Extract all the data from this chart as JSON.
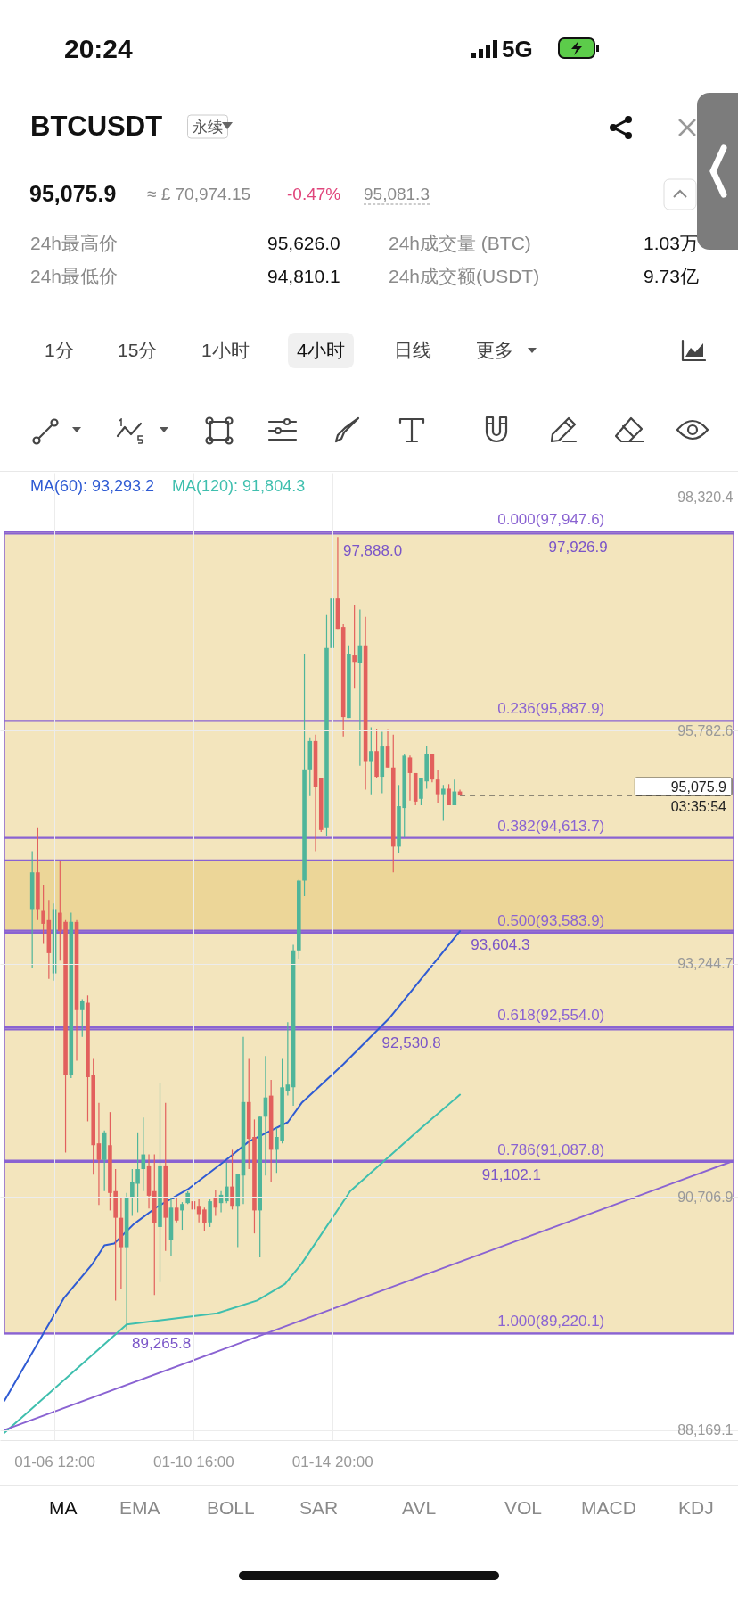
{
  "chart_data": {
    "type": "candlestick",
    "title": "BTCUSDT",
    "subtitle": "永续",
    "x": [
      "--01-05T20:00",
      "--01-06T00:00",
      "--01-06T04:00",
      "--01-06T08:00",
      "--01-06T12:00",
      "--01-06T16:00",
      "--01-06T20:00",
      "--01-07T00:00",
      "--01-07T04:00",
      "--01-07T08:00",
      "--01-07T12:00",
      "--01-07T16:00",
      "--01-07T20:00",
      "--01-08T00:00",
      "--01-08T04:00",
      "--01-08T08:00",
      "--01-08T12:00",
      "--01-08T16:00",
      "--01-08T20:00",
      "--01-09T00:00",
      "--01-09T04:00",
      "--01-09T08:00",
      "--01-09T12:00",
      "--01-09T16:00",
      "--01-09T20:00",
      "--01-10T00:00",
      "--01-10T04:00",
      "--01-10T08:00",
      "--01-10T12:00",
      "--01-10T16:00",
      "--01-10T20:00",
      "--01-11T00:00",
      "--01-11T04:00",
      "--01-11T08:00",
      "--01-11T12:00",
      "--01-11T16:00",
      "--01-11T20:00",
      "--01-12T00:00",
      "--01-12T04:00",
      "--01-12T08:00",
      "--01-12T12:00",
      "--01-12T16:00",
      "--01-12T20:00",
      "--01-13T00:00",
      "--01-13T04:00",
      "--01-13T08:00",
      "--01-13T12:00",
      "--01-13T16:00",
      "--01-13T20:00",
      "--01-14T00:00",
      "--01-14T04:00",
      "--01-14T08:00",
      "--01-14T12:00",
      "--01-14T16:00",
      "--01-14T20:00",
      "--01-15T00:00",
      "--01-15T04:00",
      "--01-15T08:00",
      "--01-15T12:00",
      "--01-15T16:00",
      "--01-15T20:00",
      "--01-16T00:00",
      "--01-16T04:00",
      "--01-16T08:00",
      "--01-16T12:00",
      "--01-16T16:00",
      "--01-16T20:00",
      "--01-17T00:00",
      "--01-17T04:00",
      "--01-17T08:00",
      "--01-17T12:00",
      "--01-17T16:00",
      "--01-17T20:00",
      "--01-18T00:00",
      "--01-18T04:00",
      "--01-18T08:00",
      "--01-18T12:00",
      "--01-18T16:00"
    ],
    "ohlc": [
      [
        93840,
        94470,
        93200,
        94240
      ],
      [
        94240,
        94730,
        93720,
        93840
      ],
      [
        93820,
        94100,
        93460,
        93680
      ],
      [
        93720,
        93940,
        93080,
        93360
      ],
      [
        93140,
        93900,
        93060,
        93840
      ],
      [
        93800,
        94360,
        93280,
        93600
      ],
      [
        93700,
        93720,
        91190,
        92030
      ],
      [
        92030,
        93800,
        92000,
        93700
      ],
      [
        93700,
        93720,
        92190,
        92740
      ],
      [
        92740,
        92860,
        92450,
        92840
      ],
      [
        92820,
        92900,
        91530,
        92010
      ],
      [
        92030,
        92210,
        90950,
        91270
      ],
      [
        91290,
        91730,
        90620,
        91110
      ],
      [
        91110,
        91430,
        90770,
        91410
      ],
      [
        91270,
        91630,
        90560,
        90750
      ],
      [
        90770,
        91010,
        89580,
        90480
      ],
      [
        90480,
        90700,
        89700,
        90160
      ],
      [
        90160,
        90750,
        89266,
        90700
      ],
      [
        90700,
        91010,
        90500,
        90870
      ],
      [
        90850,
        91410,
        90540,
        91010
      ],
      [
        91010,
        91570,
        90770,
        91170
      ],
      [
        91050,
        91170,
        90580,
        90720
      ],
      [
        90770,
        91170,
        89640,
        90420
      ],
      [
        90380,
        91950,
        89780,
        91050
      ],
      [
        91050,
        91730,
        90120,
        90480
      ],
      [
        90240,
        90700,
        90070,
        90590
      ],
      [
        90590,
        90700,
        90430,
        90450
      ],
      [
        90560,
        90650,
        90350,
        90630
      ],
      [
        90640,
        90770,
        90630,
        90750
      ],
      [
        90660,
        90710,
        90450,
        90570
      ],
      [
        90610,
        90680,
        90430,
        90520
      ],
      [
        90570,
        90590,
        90330,
        90420
      ],
      [
        90430,
        90680,
        90380,
        90660
      ],
      [
        90710,
        90780,
        90500,
        90590
      ],
      [
        90640,
        90770,
        90540,
        90730
      ],
      [
        90660,
        91080,
        90640,
        90820
      ],
      [
        90820,
        91220,
        90570,
        90610
      ],
      [
        90610,
        90960,
        90160,
        90960
      ],
      [
        90940,
        92450,
        90630,
        91740
      ],
      [
        91740,
        92210,
        91010,
        91340
      ],
      [
        91360,
        91550,
        90310,
        90560
      ],
      [
        90560,
        91580,
        90050,
        91580
      ],
      [
        91580,
        92240,
        90940,
        91790
      ],
      [
        91810,
        91980,
        90870,
        91220
      ],
      [
        91220,
        91460,
        90970,
        91360
      ],
      [
        91320,
        92210,
        91290,
        91900
      ],
      [
        91860,
        92610,
        91810,
        91930
      ],
      [
        91900,
        93450,
        91700,
        93390
      ],
      [
        93390,
        94160,
        93300,
        94150
      ],
      [
        94150,
        96620,
        93980,
        95360
      ],
      [
        95360,
        95700,
        95070,
        95670
      ],
      [
        95670,
        95740,
        94470,
        95170
      ],
      [
        95270,
        95270,
        94680,
        94700
      ],
      [
        94730,
        97040,
        94630,
        96680
      ],
      [
        96680,
        97740,
        96180,
        97220
      ],
      [
        97220,
        97888,
        96890,
        96890
      ],
      [
        96910,
        96940,
        95720,
        95930
      ],
      [
        95920,
        96710,
        95920,
        96620
      ],
      [
        96600,
        97150,
        96240,
        96530
      ],
      [
        96520,
        97100,
        95400,
        96710
      ],
      [
        96710,
        97020,
        95140,
        95450
      ],
      [
        95450,
        95820,
        95090,
        95560
      ],
      [
        95560,
        95800,
        95270,
        95280
      ],
      [
        95280,
        95770,
        95100,
        95610
      ],
      [
        95610,
        95790,
        95380,
        95380
      ],
      [
        95380,
        95740,
        94240,
        94520
      ],
      [
        94520,
        95190,
        94450,
        94960
      ],
      [
        94940,
        95530,
        94620,
        95510
      ],
      [
        95490,
        95510,
        95020,
        95320
      ],
      [
        95320,
        95320,
        94970,
        95010
      ],
      [
        95040,
        95270,
        94970,
        95270
      ],
      [
        95230,
        95610,
        95150,
        95530
      ],
      [
        95530,
        95530,
        95220,
        95250
      ],
      [
        95250,
        95350,
        94990,
        95090
      ],
      [
        95090,
        95190,
        94800,
        95150
      ],
      [
        95150,
        95200,
        94970,
        94970
      ],
      [
        94970,
        95250,
        94970,
        95120
      ],
      [
        95120,
        95140,
        95075.9,
        95075.9
      ]
    ],
    "series": [
      {
        "name": "MA(60): 93,293.2",
        "color": "#2f5bd3",
        "type": "line",
        "x": [
          "--01-05T00:00",
          "--01-05T18:00",
          "--01-06T19:00",
          "--01-07T15:00",
          "--01-08T00:00",
          "--01-08T07:00",
          "--01-08T21:00",
          "--01-09T14:00",
          "--01-10T12:00",
          "--01-11T14:00",
          "--01-12T08:00",
          "--01-13T12:00",
          "--01-13T22:00",
          "--01-15T04:00",
          "--01-16T13:00",
          "--01-18T16:00"
        ],
        "values": [
          88490,
          88960,
          89610,
          89970,
          90180,
          90200,
          90410,
          90600,
          90790,
          91090,
          91310,
          91520,
          91730,
          92150,
          92650,
          93600
        ]
      },
      {
        "name": "MA(120): 91,804.3",
        "color": "#3fbfae",
        "type": "line",
        "x": [
          "--01-05T00:00",
          "--01-05T18:00",
          "--01-08T16:00",
          "--01-11T09:00",
          "--01-12T14:00",
          "--01-13T10:00",
          "--01-13T22:00",
          "--01-15T09:00",
          "--01-17T10:00",
          "--01-18T16:00"
        ],
        "values": [
          88140,
          88380,
          89320,
          89440,
          89580,
          89760,
          89980,
          90770,
          91430,
          91820
        ]
      },
      {
        "color": "#8a63d2",
        "type": "line",
        "x": [
          "--01-05T00:00",
          "--01-26T21:00"
        ],
        "values": [
          88170,
          91100
        ]
      }
    ],
    "xlim": [
      "--01-05T00:00",
      "--01-26T21:00"
    ],
    "xticks": [
      {
        "value": "--01-06T12:00",
        "label": "01-06 12:00"
      },
      {
        "value": "--01-10T16:00",
        "label": "01-10 16:00"
      },
      {
        "value": "--01-14T20:00",
        "label": "01-14 20:00"
      }
    ],
    "ylim": [
      88060,
      98590
    ],
    "yticks": [
      {
        "value": 98320.4,
        "label": "98,320.4"
      },
      {
        "value": 95782.6,
        "label": "95,782.6"
      },
      {
        "value": 93244.7,
        "label": "93,244.7"
      },
      {
        "value": 90706.9,
        "label": "90,706.9"
      },
      {
        "value": 88169.1,
        "label": "88,169.1"
      }
    ],
    "grid": true,
    "legend": "top left",
    "bands": [
      {
        "axis": "y",
        "from": 89220.1,
        "to": 97947.6,
        "color": "#f3e5bd"
      },
      {
        "axis": "y",
        "from": 93604.3,
        "to": 94373,
        "color": "#ecd698"
      }
    ],
    "ref_lines": [
      {
        "axis": "y",
        "value": 97947.6,
        "label": "0.000(97,947.6)",
        "color": "#8a63d2"
      },
      {
        "axis": "y",
        "value": 95887.9,
        "label": "0.236(95,887.9)",
        "color": "#8a63d2"
      },
      {
        "axis": "y",
        "value": 94613.7,
        "label": "0.382(94,613.7)",
        "color": "#8a63d2"
      },
      {
        "axis": "y",
        "value": 93583.9,
        "label": "0.500(93,583.9)",
        "color": "#8a63d2"
      },
      {
        "axis": "y",
        "value": 92554.0,
        "label": "0.618(92,554.0)",
        "color": "#8a63d2"
      },
      {
        "axis": "y",
        "value": 91087.8,
        "label": "0.786(91,087.8)",
        "color": "#8a63d2"
      },
      {
        "axis": "y",
        "value": 89220.1,
        "label": "1.000(89,220.1)",
        "color": "#8a63d2"
      },
      {
        "axis": "y",
        "value": 97926.9,
        "color": "#8a63d2"
      },
      {
        "axis": "y",
        "value": 93604.3,
        "color": "#8a63d2"
      },
      {
        "axis": "y",
        "value": 92530.8,
        "color": "#8a63d2"
      },
      {
        "axis": "y",
        "value": 91102.1,
        "color": "#8a63d2"
      },
      {
        "axis": "y",
        "value": 95075.9,
        "label": "95,075.9\n03:35:54",
        "color": "#444444",
        "line_style": "dashed"
      }
    ],
    "annotations": [
      "20:24",
      "5G",
      "95,075.9",
      "≈ £ 70,974.15",
      "-0.47%",
      "95,081.3",
      "24h最高价",
      "95,626.0",
      "24h成交量 (BTC)",
      "1.03万",
      "24h最低价",
      "94,810.1",
      "24h成交额(USDT)",
      "9.73亿",
      "1分",
      "15分",
      "1小时",
      "4小时",
      "日线",
      "更多",
      "MA",
      "EMA",
      "BOLL",
      "SAR",
      "AVL",
      "VOL",
      "MACD",
      "KDJ",
      {
        "text": "97,926.9",
        "x": "--01-21T04:00",
        "y": 97926.9
      },
      {
        "text": "93,604.3",
        "x": "--01-18T20:00",
        "y": 93604.3
      },
      {
        "text": "92,530.8",
        "x": "--01-16T04:00",
        "y": 92530.8
      },
      {
        "text": "91,102.1",
        "x": "--01-19T04:00",
        "y": 91102.1
      },
      {
        "text": "97,888.0",
        "x": "--01-15T00:00",
        "y": 97888.0
      },
      {
        "text": "89,265.8",
        "x": "--01-08T16:00",
        "y": 89265.8
      }
    ]
  }
}
